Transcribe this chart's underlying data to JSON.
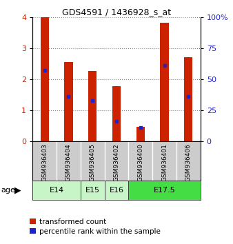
{
  "title": "GDS4591 / 1436928_s_at",
  "samples": [
    "GSM936403",
    "GSM936404",
    "GSM936405",
    "GSM936402",
    "GSM936400",
    "GSM936401",
    "GSM936406"
  ],
  "transformed_count": [
    4.0,
    2.55,
    2.27,
    1.77,
    0.47,
    3.82,
    2.7
  ],
  "percentile_rank": [
    57,
    36,
    33,
    16,
    11,
    61,
    36
  ],
  "age_groups": [
    {
      "label": "E14",
      "samples": [
        0,
        1
      ],
      "color": "#c8f5c8"
    },
    {
      "label": "E15",
      "samples": [
        2
      ],
      "color": "#c8f5c8"
    },
    {
      "label": "E16",
      "samples": [
        3
      ],
      "color": "#c8f5c8"
    },
    {
      "label": "E17.5",
      "samples": [
        4,
        5,
        6
      ],
      "color": "#44dd44"
    }
  ],
  "bar_color": "#cc2200",
  "percentile_color": "#2222cc",
  "left_ylim": [
    0,
    4
  ],
  "left_yticks": [
    0,
    1,
    2,
    3,
    4
  ],
  "right_ylim": [
    0,
    100
  ],
  "right_yticks": [
    0,
    25,
    50,
    75,
    100
  ],
  "right_yticklabels": [
    "0",
    "25",
    "50",
    "75",
    "100%"
  ],
  "left_tick_color": "#cc2200",
  "right_tick_color": "#2222cc",
  "bar_width": 0.35,
  "background_color": "#ffffff",
  "plot_bg_color": "#ffffff",
  "grid_color": "#888888",
  "sample_label_bg": "#cccccc",
  "legend_items": [
    {
      "label": "transformed count",
      "color": "#cc2200"
    },
    {
      "label": "percentile rank within the sample",
      "color": "#2222cc"
    }
  ]
}
